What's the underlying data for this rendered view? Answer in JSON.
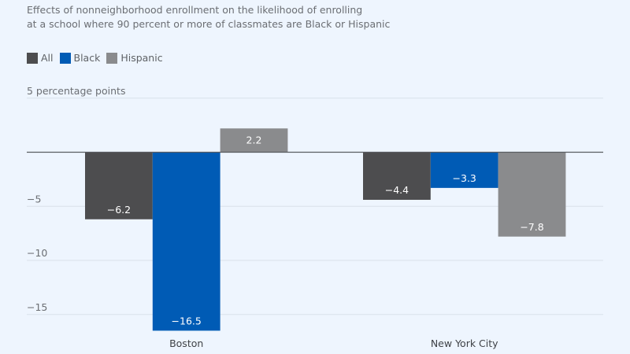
{
  "chart_data": {
    "type": "bar",
    "title": "Effects of nonneighborhood enrollment on the likelihood of enrolling at a school where 90 percent or more of classmates are Black or Hispanic",
    "title_lines": [
      "Effects of nonneighborhood enrollment on the likelihood of enrolling",
      "at a school where 90 percent or more of classmates are Black or Hispanic"
    ],
    "ylabel": "percentage points",
    "xlabel": "",
    "categories": [
      "Boston",
      "New York City"
    ],
    "series": [
      {
        "name": "All",
        "color": "#4d4d4f",
        "values": [
          -6.2,
          -4.4
        ],
        "labels": [
          "−6.2",
          "−4.4"
        ]
      },
      {
        "name": "Black",
        "color": "#005bb5",
        "values": [
          -16.5,
          -3.3
        ],
        "labels": [
          "−16.5",
          "−3.3"
        ]
      },
      {
        "name": "Hispanic",
        "color": "#8a8b8d",
        "values": [
          2.2,
          -7.8
        ],
        "labels": [
          "2.2",
          "−7.8"
        ]
      }
    ],
    "yticks": [
      5,
      0,
      -5,
      -10,
      -15
    ],
    "ytick_labels": [
      "5 percentage points",
      "",
      "−5",
      "−10",
      "−15"
    ],
    "ylim": [
      -17,
      5
    ],
    "grid": true,
    "legend_position": "top-left"
  }
}
